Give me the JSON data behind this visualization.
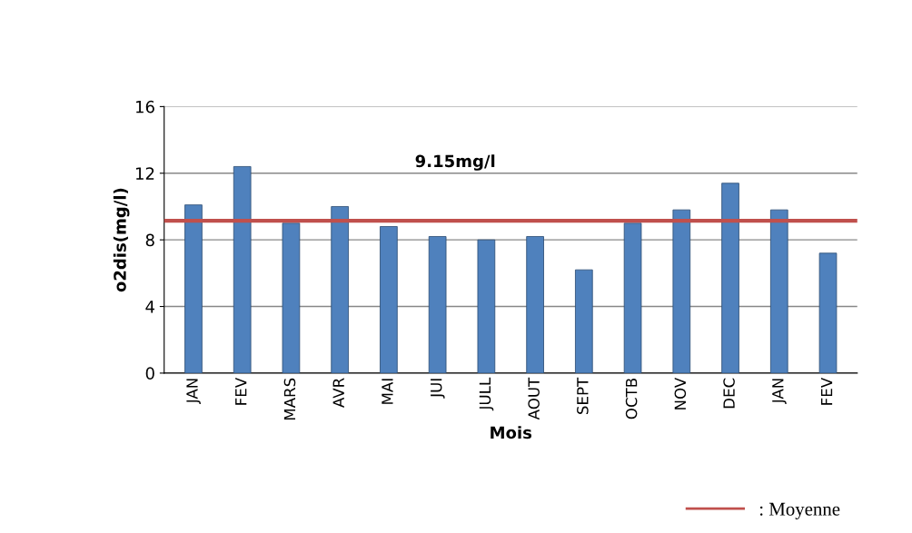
{
  "chart_data": {
    "type": "bar",
    "xlabel": "Mois",
    "ylabel": "o2dis(mg/l)",
    "categories": [
      "JAN",
      "FEV",
      "MARS",
      "AVR",
      "MAI",
      "JUI",
      "JULL",
      "AOUT",
      "SEPT",
      "OCTB",
      "NOV",
      "DEC",
      "JAN",
      "FEV"
    ],
    "values": [
      10.1,
      12.4,
      9.0,
      10.0,
      8.8,
      8.2,
      8.0,
      8.2,
      6.2,
      9.0,
      9.8,
      11.4,
      9.8,
      7.2
    ],
    "color": "#4f81bd",
    "ylim": [
      0,
      16
    ],
    "yticks": [
      0,
      4,
      8,
      12,
      16
    ],
    "grid": "y",
    "ref_lines": [
      {
        "axis": "y",
        "value": 9.15,
        "label": ": Moyenne",
        "color": "#c0504d"
      }
    ],
    "annotations": [
      "9.15mg/l"
    ],
    "legend": "bottom right"
  }
}
